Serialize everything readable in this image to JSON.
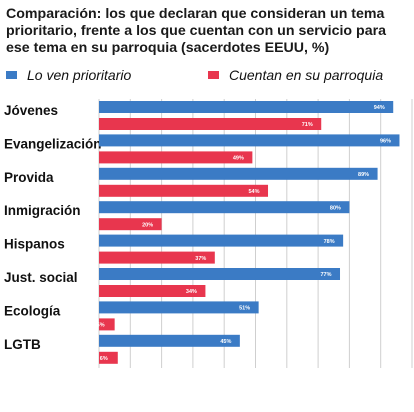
{
  "title": "Comparación: los que declaran que consideran un tema prioritario, frente a los que cuentan con un servicio para ese tema en su parroquia (sacerdotes EEUU, %)",
  "chart_data": {
    "type": "bar",
    "orientation": "horizontal",
    "categories": [
      "Jóvenes",
      "Evangelización",
      "Provida",
      "Inmigración",
      "Hispanos",
      "Just. social",
      "Ecología",
      "LGTB"
    ],
    "series": [
      {
        "name": "Lo ven prioritario",
        "color": "#3b7bc5",
        "values": [
          94,
          96,
          89,
          80,
          78,
          77,
          51,
          45
        ],
        "labels": [
          "94%",
          "96%",
          "89%",
          "80%",
          "78%",
          "77%",
          "51%",
          "45%"
        ]
      },
      {
        "name": "Cuentan en su  parroquia",
        "color": "#e8364e",
        "values": [
          71,
          49,
          54,
          20,
          37,
          34,
          5,
          6
        ],
        "labels": [
          "71%",
          "49%",
          "54%",
          "20%",
          "37%",
          "34%",
          "5%",
          "6%"
        ]
      }
    ],
    "xlim": [
      0,
      100
    ],
    "grid": true,
    "legend": "top"
  }
}
